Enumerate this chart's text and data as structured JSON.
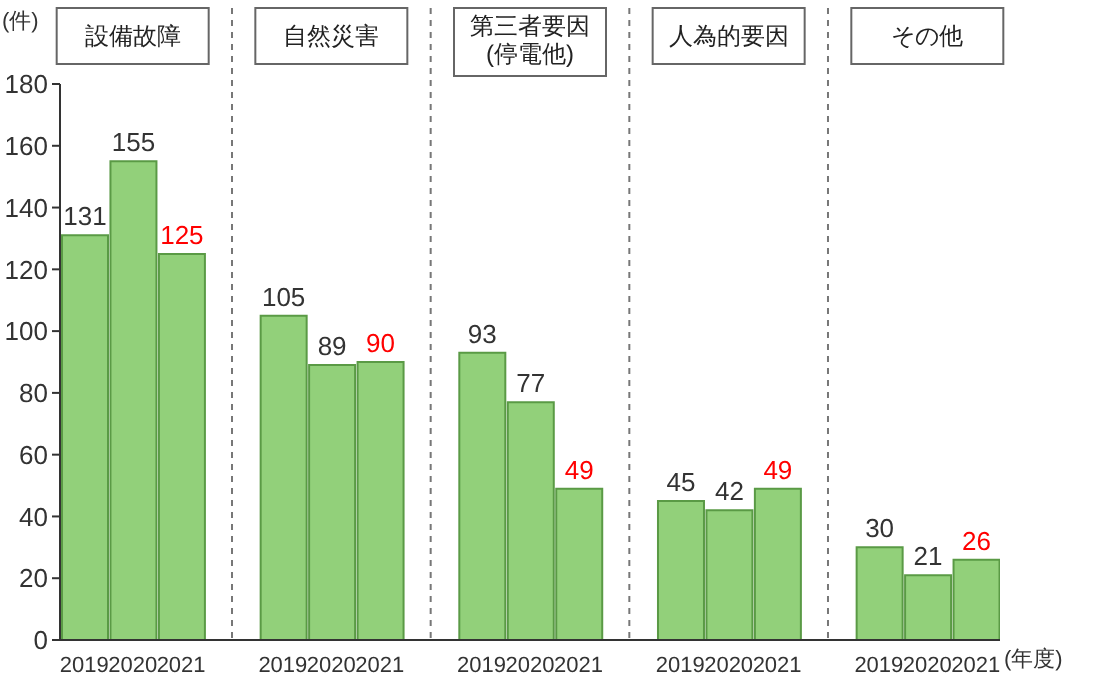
{
  "chart_data": {
    "type": "bar",
    "ylabel": "(件)",
    "xlabel": "(年度)",
    "categories": [
      "2019",
      "2020",
      "2021",
      "2019",
      "2020",
      "2021",
      "2019",
      "2020",
      "2021",
      "2019",
      "2020",
      "2021",
      "2019",
      "2020",
      "2021"
    ],
    "values": [
      131,
      155,
      125,
      105,
      89,
      90,
      93,
      77,
      49,
      45,
      42,
      49,
      30,
      21,
      26
    ],
    "color": "#92d07a",
    "ylim": [
      0,
      180
    ],
    "yticks": [
      0,
      20,
      40,
      60,
      80,
      100,
      120,
      140,
      160,
      180
    ],
    "annotations": [
      "設備故障",
      "自然災害",
      "第三者要因\n(停電他)",
      "人為的要因",
      "その他"
    ],
    "data_labels": true
  }
}
